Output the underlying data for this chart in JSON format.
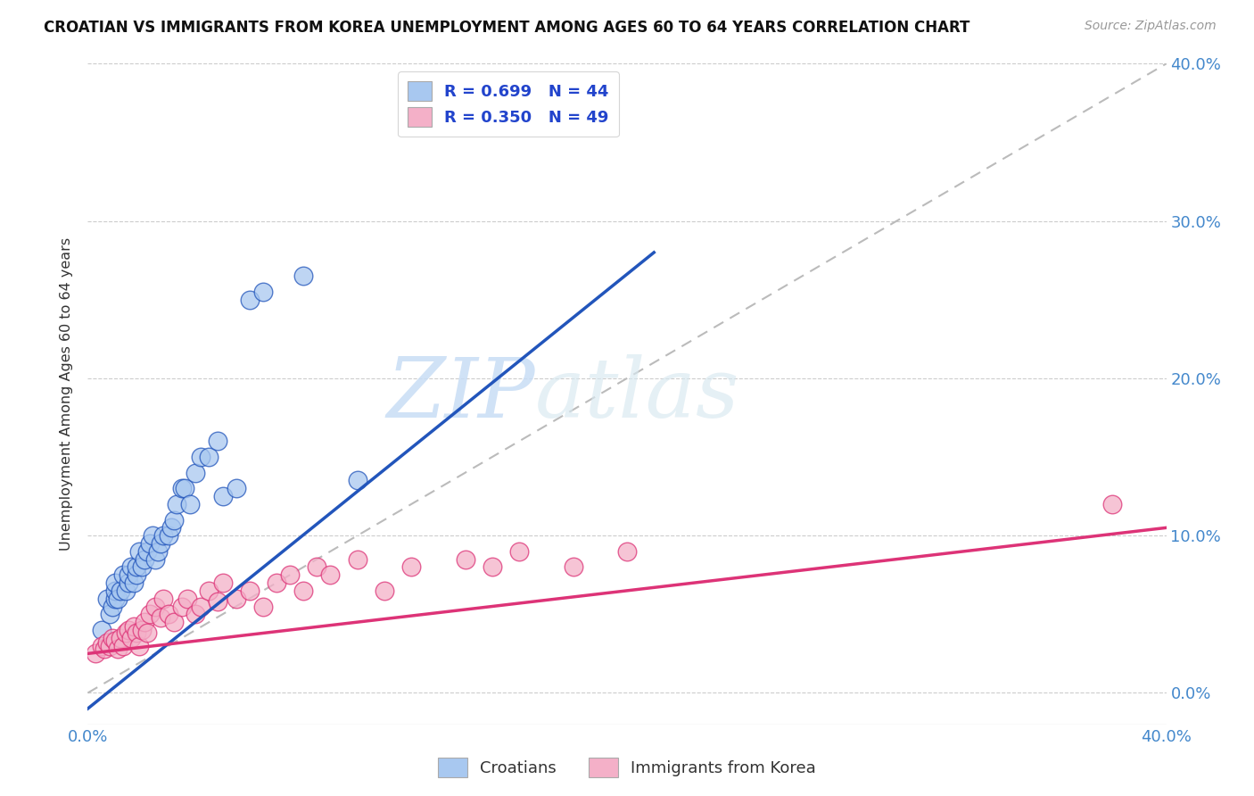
{
  "title": "CROATIAN VS IMMIGRANTS FROM KOREA UNEMPLOYMENT AMONG AGES 60 TO 64 YEARS CORRELATION CHART",
  "source": "Source: ZipAtlas.com",
  "ylabel": "Unemployment Among Ages 60 to 64 years",
  "xlim": [
    0.0,
    0.4
  ],
  "ylim": [
    -0.02,
    0.4
  ],
  "croatians_color": "#a8c8f0",
  "koreans_color": "#f4b0c8",
  "line_croatians_color": "#2255bb",
  "line_koreans_color": "#dd3377",
  "dashed_line_color": "#bbbbbb",
  "legend_R_croatians": "R = 0.699",
  "legend_N_croatians": "N = 44",
  "legend_R_koreans": "R = 0.350",
  "legend_N_koreans": "N = 49",
  "watermark_zip": "ZIP",
  "watermark_atlas": "atlas",
  "background_color": "#ffffff",
  "grid_color": "#cccccc",
  "blue_line_x0": 0.0,
  "blue_line_y0": -0.01,
  "blue_line_x1": 0.21,
  "blue_line_y1": 0.28,
  "pink_line_x0": 0.0,
  "pink_line_y0": 0.025,
  "pink_line_x1": 0.4,
  "pink_line_y1": 0.105,
  "croatians_x": [
    0.005,
    0.007,
    0.008,
    0.009,
    0.01,
    0.01,
    0.01,
    0.011,
    0.012,
    0.013,
    0.014,
    0.015,
    0.015,
    0.016,
    0.017,
    0.018,
    0.018,
    0.019,
    0.02,
    0.021,
    0.022,
    0.023,
    0.024,
    0.025,
    0.026,
    0.027,
    0.028,
    0.03,
    0.031,
    0.032,
    0.033,
    0.035,
    0.036,
    0.038,
    0.04,
    0.042,
    0.045,
    0.048,
    0.05,
    0.055,
    0.06,
    0.065,
    0.08,
    0.1
  ],
  "croatians_y": [
    0.04,
    0.06,
    0.05,
    0.055,
    0.06,
    0.065,
    0.07,
    0.06,
    0.065,
    0.075,
    0.065,
    0.07,
    0.075,
    0.08,
    0.07,
    0.075,
    0.08,
    0.09,
    0.08,
    0.085,
    0.09,
    0.095,
    0.1,
    0.085,
    0.09,
    0.095,
    0.1,
    0.1,
    0.105,
    0.11,
    0.12,
    0.13,
    0.13,
    0.12,
    0.14,
    0.15,
    0.15,
    0.16,
    0.125,
    0.13,
    0.25,
    0.255,
    0.265,
    0.135
  ],
  "koreans_x": [
    0.003,
    0.005,
    0.006,
    0.007,
    0.008,
    0.009,
    0.01,
    0.011,
    0.012,
    0.013,
    0.014,
    0.015,
    0.016,
    0.017,
    0.018,
    0.019,
    0.02,
    0.021,
    0.022,
    0.023,
    0.025,
    0.027,
    0.028,
    0.03,
    0.032,
    0.035,
    0.037,
    0.04,
    0.042,
    0.045,
    0.048,
    0.05,
    0.055,
    0.06,
    0.065,
    0.07,
    0.075,
    0.08,
    0.085,
    0.09,
    0.1,
    0.11,
    0.12,
    0.14,
    0.15,
    0.16,
    0.18,
    0.2,
    0.38
  ],
  "koreans_y": [
    0.025,
    0.03,
    0.028,
    0.032,
    0.03,
    0.035,
    0.033,
    0.028,
    0.035,
    0.03,
    0.038,
    0.04,
    0.035,
    0.042,
    0.038,
    0.03,
    0.04,
    0.045,
    0.038,
    0.05,
    0.055,
    0.048,
    0.06,
    0.05,
    0.045,
    0.055,
    0.06,
    0.05,
    0.055,
    0.065,
    0.058,
    0.07,
    0.06,
    0.065,
    0.055,
    0.07,
    0.075,
    0.065,
    0.08,
    0.075,
    0.085,
    0.065,
    0.08,
    0.085,
    0.08,
    0.09,
    0.08,
    0.09,
    0.12
  ]
}
